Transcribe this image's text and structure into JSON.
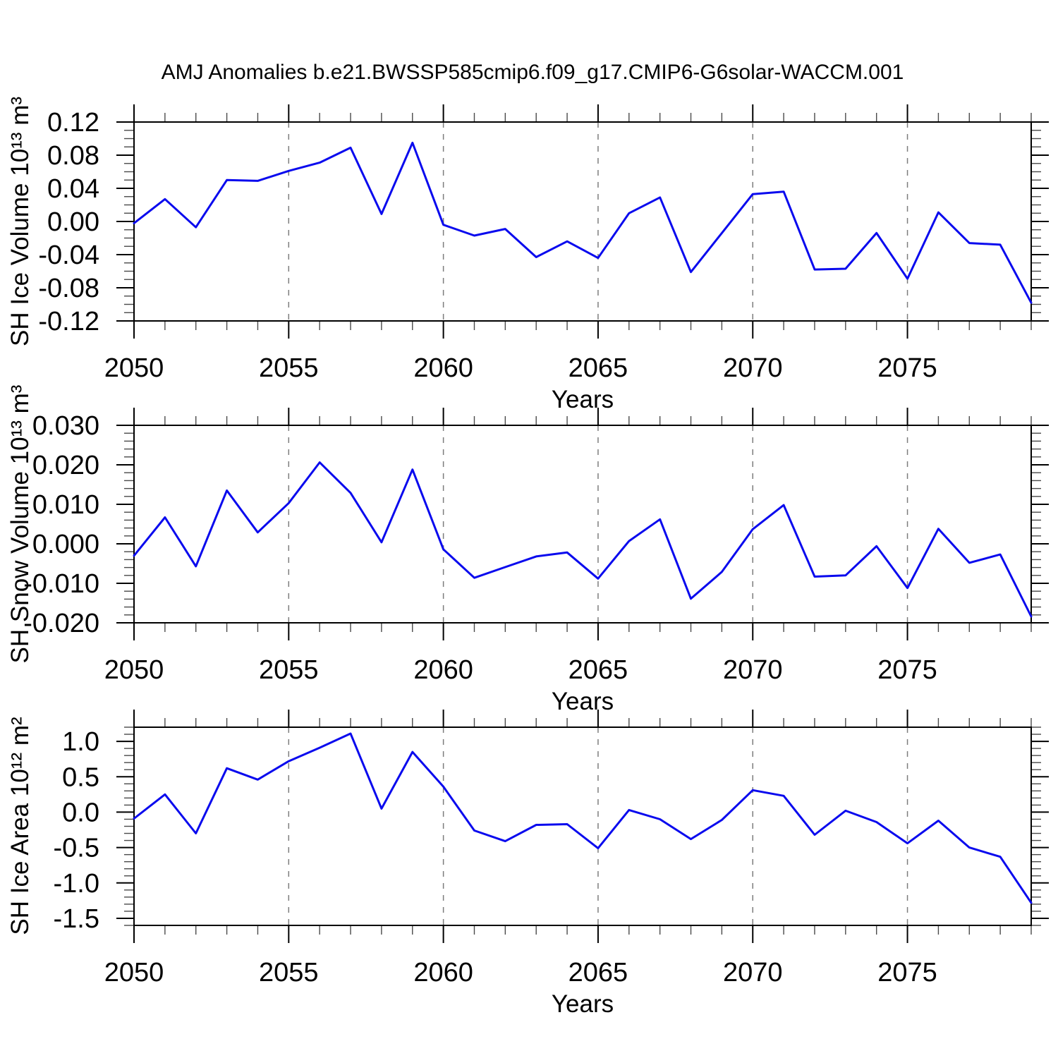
{
  "title": "AMJ Anomalies b.e21.BWSSP585cmip6.f09_g17.CMIP6-G6solar-WACCM.001",
  "xlabel": "Years",
  "years": [
    2050,
    2051,
    2052,
    2053,
    2054,
    2055,
    2056,
    2057,
    2058,
    2059,
    2060,
    2061,
    2062,
    2063,
    2064,
    2065,
    2066,
    2067,
    2068,
    2069,
    2070,
    2071,
    2072,
    2073,
    2074,
    2075,
    2076,
    2077,
    2078,
    2079
  ],
  "colors": {
    "line": "#0a0aee",
    "grid": "#7d7d7d",
    "axis": "#000000",
    "minor_tick": "#4a4a4a",
    "text": "#000000"
  },
  "chart_data": [
    {
      "type": "line",
      "ylabel": "SH Ice Volume 10¹³ m³",
      "xlabel": "Years",
      "ylim": [
        -0.12,
        0.12
      ],
      "ytick_values": [
        0.12,
        0.08,
        0.04,
        0.0,
        -0.04,
        -0.08,
        -0.12
      ],
      "ytick_labels": [
        "0.12",
        "0.08",
        "0.04",
        "0.00",
        "-0.04",
        "-0.08",
        "-0.12"
      ],
      "yminor_step": 0.01,
      "xtick_years": [
        2050,
        2055,
        2060,
        2065,
        2070,
        2075
      ],
      "grid_years": [
        2055,
        2060,
        2065,
        2070,
        2075
      ],
      "values": [
        -0.002,
        0.027,
        -0.007,
        0.05,
        0.049,
        0.061,
        0.071,
        0.089,
        0.009,
        0.095,
        -0.004,
        -0.017,
        -0.009,
        -0.043,
        -0.024,
        -0.044,
        0.01,
        0.029,
        -0.061,
        -0.014,
        0.033,
        0.036,
        -0.058,
        -0.057,
        -0.014,
        -0.069,
        0.011,
        -0.026,
        -0.028,
        -0.098
      ]
    },
    {
      "type": "line",
      "ylabel": "SH Snow Volume 10¹³ m³",
      "xlabel": "Years",
      "ylim": [
        -0.02,
        0.03
      ],
      "ytick_values": [
        0.03,
        0.02,
        0.01,
        0.0,
        -0.01,
        -0.02
      ],
      "ytick_labels": [
        "0.030",
        "0.020",
        "0.010",
        "0.000",
        "-0.010",
        "-0.020"
      ],
      "yminor_step": 0.002,
      "xtick_years": [
        2050,
        2055,
        2060,
        2065,
        2070,
        2075
      ],
      "grid_years": [
        2055,
        2060,
        2065,
        2070,
        2075
      ],
      "values": [
        -0.003,
        0.0067,
        -0.0057,
        0.0135,
        0.0029,
        0.0103,
        0.0206,
        0.0129,
        0.0004,
        0.0188,
        -0.0014,
        -0.0086,
        -0.0059,
        -0.0032,
        -0.0022,
        -0.0088,
        0.0007,
        0.0062,
        -0.0139,
        -0.0071,
        0.0037,
        0.0098,
        -0.0083,
        -0.008,
        -0.0006,
        -0.0112,
        0.0038,
        -0.0048,
        -0.0027,
        -0.0184
      ]
    },
    {
      "type": "line",
      "ylabel": "SH Ice Area 10¹² m²",
      "xlabel": "Years",
      "ylim": [
        -1.6,
        1.2
      ],
      "ytick_values": [
        1.0,
        0.5,
        0.0,
        -0.5,
        -1.0,
        -1.5
      ],
      "ytick_labels": [
        "1.0",
        "0.5",
        "0.0",
        "-0.5",
        "-1.0",
        "-1.5"
      ],
      "yminor_step": 0.1,
      "xtick_years": [
        2050,
        2055,
        2060,
        2065,
        2070,
        2075
      ],
      "grid_years": [
        2055,
        2060,
        2065,
        2070,
        2075
      ],
      "values": [
        -0.09,
        0.25,
        -0.3,
        0.62,
        0.46,
        0.72,
        0.91,
        1.11,
        0.05,
        0.85,
        0.36,
        -0.26,
        -0.41,
        -0.18,
        -0.17,
        -0.51,
        0.03,
        -0.1,
        -0.38,
        -0.11,
        0.31,
        0.23,
        -0.32,
        0.02,
        -0.14,
        -0.44,
        -0.12,
        -0.5,
        -0.63,
        -1.28
      ]
    }
  ]
}
